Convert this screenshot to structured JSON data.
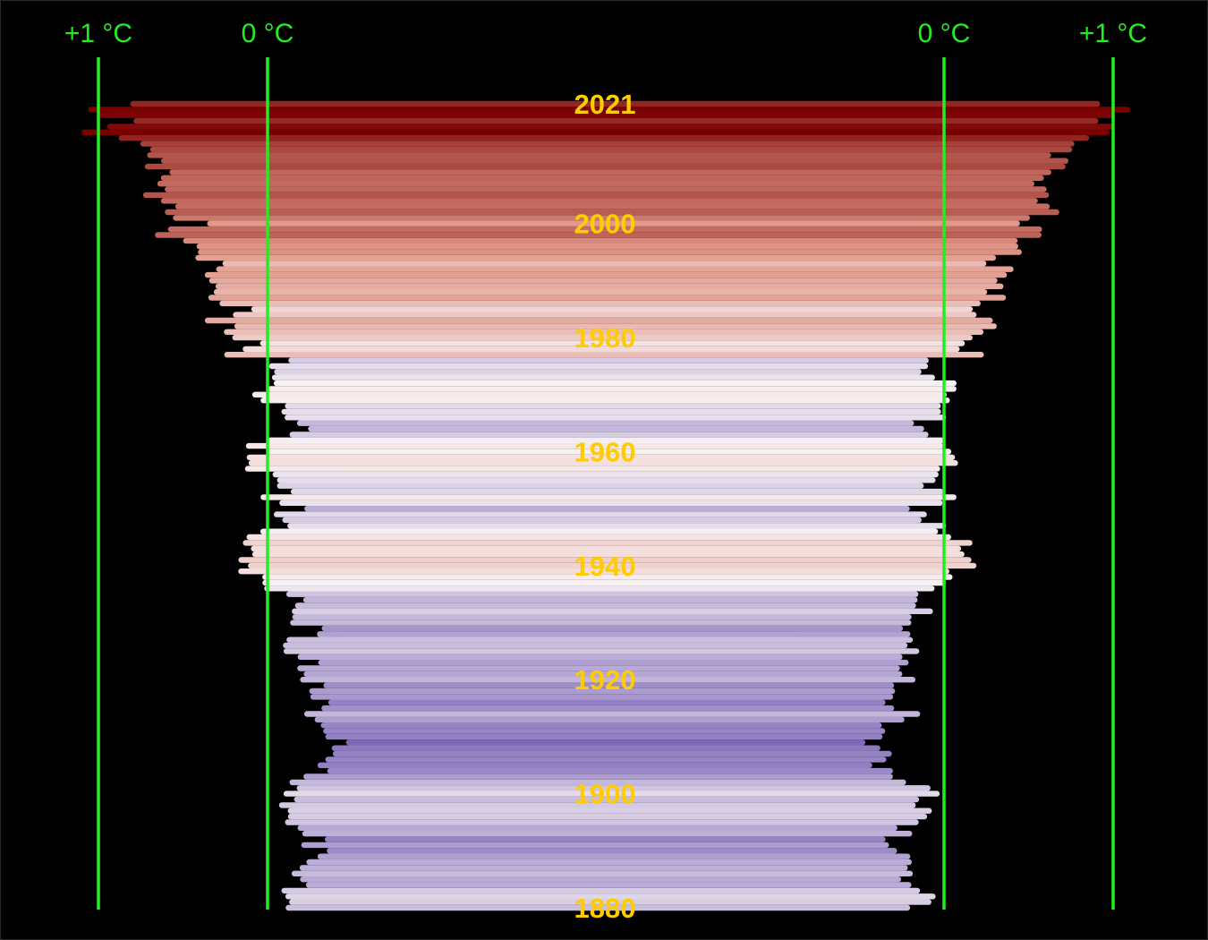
{
  "chart_data": {
    "type": "bar",
    "description_free": true,
    "years_first": 1880,
    "years_last": 2021,
    "axis_labels": {
      "left_outer": "+1 °C",
      "left_zero": "0 °C",
      "right_zero": "0 °C",
      "right_outer": "+1 °C"
    },
    "year_labels": [
      "2021",
      "2000",
      "1980",
      "1960",
      "1940",
      "1920",
      "1900",
      "1880"
    ],
    "label_years": [
      2021,
      2000,
      1980,
      1960,
      1940,
      1920,
      1900,
      1880
    ],
    "unit": "°C",
    "xlim": [
      -1.0,
      1.0
    ],
    "anomaly_knots": [
      [
        1880,
        -0.15
      ],
      [
        1882,
        -0.12
      ],
      [
        1885,
        -0.2
      ],
      [
        1888,
        -0.18
      ],
      [
        1890,
        -0.3
      ],
      [
        1893,
        -0.28
      ],
      [
        1896,
        -0.1
      ],
      [
        1898,
        -0.16
      ],
      [
        1900,
        -0.06
      ],
      [
        1902,
        -0.22
      ],
      [
        1904,
        -0.38
      ],
      [
        1907,
        -0.34
      ],
      [
        1909,
        -0.44
      ],
      [
        1911,
        -0.42
      ],
      [
        1914,
        -0.2
      ],
      [
        1916,
        -0.32
      ],
      [
        1918,
        -0.34
      ],
      [
        1920,
        -0.24
      ],
      [
        1923,
        -0.26
      ],
      [
        1926,
        -0.15
      ],
      [
        1929,
        -0.3
      ],
      [
        1931,
        -0.13
      ],
      [
        1934,
        -0.17
      ],
      [
        1937,
        -0.02
      ],
      [
        1940,
        0.12
      ],
      [
        1942,
        0.08
      ],
      [
        1944,
        0.2
      ],
      [
        1946,
        -0.04
      ],
      [
        1948,
        -0.08
      ],
      [
        1950,
        -0.18
      ],
      [
        1952,
        -0.02
      ],
      [
        1954,
        -0.14
      ],
      [
        1957,
        0.04
      ],
      [
        1959,
        0.03
      ],
      [
        1961,
        0.06
      ],
      [
        1964,
        -0.2
      ],
      [
        1966,
        -0.05
      ],
      [
        1968,
        -0.05
      ],
      [
        1970,
        0.03
      ],
      [
        1972,
        0.0
      ],
      [
        1974,
        -0.07
      ],
      [
        1976,
        -0.11
      ],
      [
        1977,
        0.17
      ],
      [
        1979,
        0.07
      ],
      [
        1981,
        0.22
      ],
      [
        1983,
        0.28
      ],
      [
        1985,
        0.12
      ],
      [
        1987,
        0.33
      ],
      [
        1989,
        0.27
      ],
      [
        1991,
        0.42
      ],
      [
        1993,
        0.23
      ],
      [
        1995,
        0.45
      ],
      [
        1997,
        0.48
      ],
      [
        1998,
        0.63
      ],
      [
        2000,
        0.41
      ],
      [
        2002,
        0.62
      ],
      [
        2004,
        0.54
      ],
      [
        2005,
        0.68
      ],
      [
        2008,
        0.54
      ],
      [
        2010,
        0.72
      ],
      [
        2012,
        0.64
      ],
      [
        2014,
        0.74
      ],
      [
        2015,
        0.9
      ],
      [
        2016,
        1.02
      ],
      [
        2017,
        0.92
      ],
      [
        2018,
        0.85
      ],
      [
        2019,
        0.98
      ],
      [
        2020,
        1.01
      ],
      [
        2021,
        0.85
      ]
    ]
  },
  "colors": {
    "background": "#000000",
    "axis_line": "#22ee22",
    "axis_text": "#22ee22",
    "year_text": "#ffcc00",
    "cold": "#7e68b8",
    "neutral": "#f8f2f4",
    "warm": "#7a0000"
  }
}
